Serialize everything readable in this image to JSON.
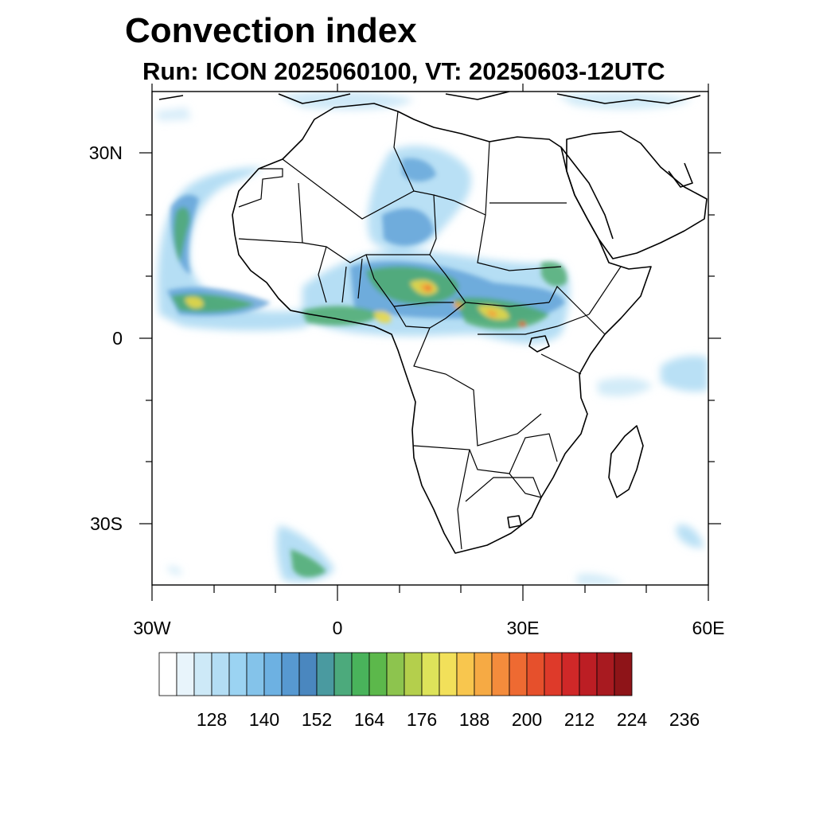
{
  "header": {
    "title": "Convection index",
    "subtitle": "Run: ICON 2025060100,  VT: 20250603-12UTC"
  },
  "axes": {
    "lat_labels": [
      "30N",
      "0",
      "30S"
    ],
    "lon_labels": [
      "30W",
      "0",
      "30E",
      "60E"
    ]
  },
  "colorbar": {
    "colors": [
      "#ffffff",
      "#e8f4fb",
      "#cde9f7",
      "#b3ddf4",
      "#9bd3f2",
      "#84c3ea",
      "#6db1e2",
      "#5799d1",
      "#4a87bf",
      "#4a9aa0",
      "#4caa7c",
      "#49b35b",
      "#5cb84b",
      "#8dc44e",
      "#b4cf4c",
      "#dde35a",
      "#f2e05a",
      "#f8c64e",
      "#f6aa44",
      "#f48c3c",
      "#ee6a32",
      "#e6502c",
      "#de3a2a",
      "#d02828",
      "#bc1e24",
      "#a81a20",
      "#8e1418"
    ],
    "labels": [
      "128",
      "140",
      "152",
      "164",
      "176",
      "188",
      "200",
      "212",
      "224",
      "236"
    ]
  }
}
